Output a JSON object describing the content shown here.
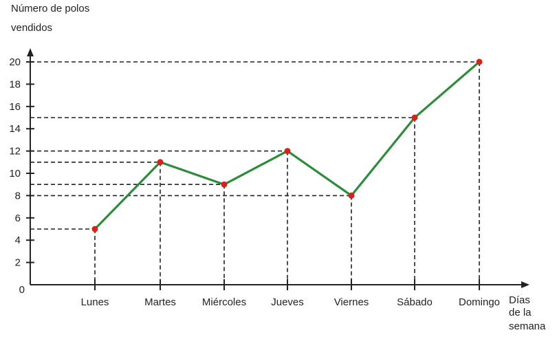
{
  "chart_data": {
    "type": "line",
    "ylabel": [
      "Número de polos",
      "vendidos"
    ],
    "xlabel": [
      "Días",
      "de la",
      "semana"
    ],
    "categories": [
      "Lunes",
      "Martes",
      "Miércoles",
      "Jueves",
      "Viernes",
      "Sábado",
      "Domingo"
    ],
    "values": [
      5,
      11,
      9,
      12,
      8,
      15,
      20
    ],
    "yticks": [
      0,
      2,
      4,
      6,
      8,
      10,
      12,
      14,
      16,
      18,
      20
    ],
    "ylim": [
      0,
      20
    ],
    "line_color": "#2e8b3a",
    "point_color": "#d0241c",
    "grid": false
  }
}
